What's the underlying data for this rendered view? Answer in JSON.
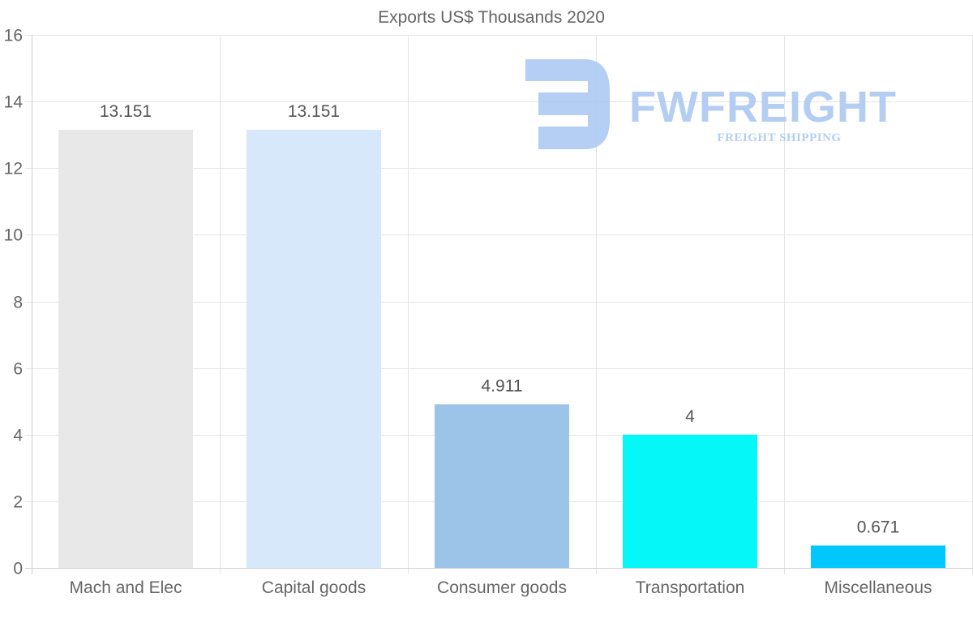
{
  "chart_data": {
    "type": "bar",
    "title": "Exports US$ Thousands 2020",
    "xlabel": "",
    "ylabel": "",
    "categories": [
      "Mach and Elec",
      "Capital goods",
      "Consumer goods",
      "Transportation",
      "Miscellaneous"
    ],
    "values": [
      13.151,
      13.151,
      4.911,
      4,
      0.671
    ],
    "data_labels": [
      "13.151",
      "13.151",
      "4.911",
      "4",
      "0.671"
    ],
    "colors": [
      "#e8e8e8",
      "#d6e8f9",
      "#9cc4e8",
      "#05f7f7",
      "#00c8ff"
    ],
    "ylim": [
      0,
      16
    ],
    "yticks": [
      0,
      2,
      4,
      6,
      8,
      10,
      12,
      14,
      16
    ],
    "ytick_labels": [
      "0",
      "2",
      "4",
      "6",
      "8",
      "10",
      "12",
      "14",
      "16"
    ],
    "grid": true,
    "legend": "none"
  },
  "watermark": {
    "name": "FWFREIGHT",
    "tagline": "FREIGHT SHIPPING",
    "color": "#a8c6f2"
  }
}
